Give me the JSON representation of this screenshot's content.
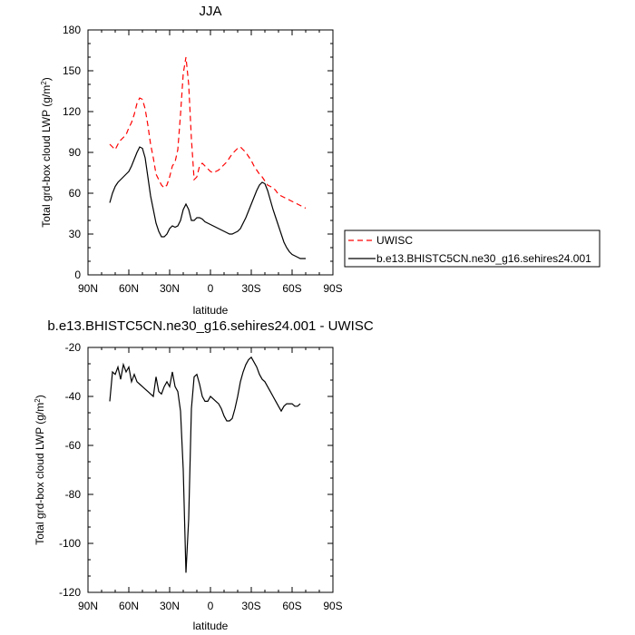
{
  "chart_data": [
    {
      "type": "line",
      "title": "JJA",
      "xlabel": "latitude",
      "ylabel": "Total grd-box cloud LWP (g/m",
      "ylabel_sup": "2",
      "ylabel_close": ")",
      "xlim": [
        90,
        -90
      ],
      "ylim": [
        0,
        180
      ],
      "x_ticks": [
        90,
        60,
        30,
        0,
        -30,
        -60,
        -90
      ],
      "x_tick_labels": [
        "90N",
        "60N",
        "30N",
        "0",
        "30S",
        "60S",
        "90S"
      ],
      "y_ticks": [
        0,
        30,
        60,
        90,
        120,
        150,
        180
      ],
      "y_tick_labels": [
        "0",
        "30",
        "60",
        "90",
        "120",
        "150",
        "180"
      ],
      "legend_position": "right, outside plot",
      "series": [
        {
          "name": "UWISC",
          "color": "#ff0000",
          "dash": "dashed",
          "x": [
            74,
            72,
            70,
            68,
            66,
            64,
            62,
            60,
            58,
            56,
            54,
            52,
            50,
            48,
            46,
            44,
            42,
            40,
            38,
            36,
            34,
            32,
            30,
            28,
            26,
            24,
            22,
            20,
            18,
            16,
            14,
            12,
            10,
            8,
            6,
            4,
            2,
            0,
            -2,
            -4,
            -6,
            -8,
            -10,
            -12,
            -14,
            -16,
            -18,
            -20,
            -22,
            -24,
            -26,
            -28,
            -30,
            -32,
            -34,
            -36,
            -38,
            -40,
            -42,
            -44,
            -46,
            -48,
            -50,
            -52,
            -54,
            -56,
            -58,
            -60,
            -62,
            -64,
            -66,
            -68,
            -70
          ],
          "values": [
            96,
            94,
            92,
            96,
            99,
            101,
            103,
            108,
            112,
            118,
            126,
            130,
            129,
            122,
            110,
            96,
            86,
            74,
            70,
            66,
            64,
            66,
            72,
            80,
            83,
            92,
            118,
            148,
            160,
            140,
            100,
            70,
            72,
            80,
            82,
            80,
            78,
            76,
            75,
            76,
            77,
            79,
            81,
            83,
            86,
            89,
            91,
            93,
            94,
            92,
            90,
            87,
            84,
            80,
            77,
            74,
            72,
            69,
            66,
            65,
            64,
            62,
            59,
            58,
            57,
            56,
            55,
            54,
            53,
            52,
            51,
            50,
            49
          ]
        },
        {
          "name": "b.e13.BHISTC5CN.ne30_g16.sehires24.001",
          "color": "#000000",
          "dash": "solid",
          "x": [
            74,
            72,
            70,
            68,
            66,
            64,
            62,
            60,
            58,
            56,
            54,
            52,
            50,
            48,
            46,
            44,
            42,
            40,
            38,
            36,
            34,
            32,
            30,
            28,
            26,
            24,
            22,
            20,
            18,
            16,
            14,
            12,
            10,
            8,
            6,
            4,
            2,
            0,
            -2,
            -4,
            -6,
            -8,
            -10,
            -12,
            -14,
            -16,
            -18,
            -20,
            -22,
            -24,
            -26,
            -28,
            -30,
            -32,
            -34,
            -36,
            -38,
            -40,
            -42,
            -44,
            -46,
            -48,
            -50,
            -52,
            -54,
            -56,
            -58,
            -60,
            -62,
            -64,
            -66,
            -68,
            -70
          ],
          "values": [
            53,
            60,
            65,
            68,
            70,
            72,
            74,
            76,
            80,
            85,
            90,
            94,
            93,
            86,
            72,
            58,
            48,
            38,
            32,
            28,
            28,
            30,
            34,
            36,
            35,
            36,
            40,
            48,
            52,
            48,
            40,
            40,
            42,
            42,
            41,
            39,
            38,
            37,
            36,
            35,
            34,
            33,
            32,
            31,
            30,
            30,
            31,
            32,
            34,
            38,
            42,
            47,
            52,
            57,
            62,
            66,
            68,
            67,
            62,
            55,
            48,
            42,
            36,
            30,
            24,
            20,
            17,
            15,
            14,
            13,
            12,
            12,
            12
          ]
        }
      ]
    },
    {
      "type": "line",
      "title": "b.e13.BHISTC5CN.ne30_g16.sehires24.001 - UWISC",
      "xlabel": "latitude",
      "ylabel": "Total grd-box cloud LWP (g/m",
      "ylabel_sup": "2",
      "ylabel_close": ")",
      "xlim": [
        90,
        -90
      ],
      "ylim": [
        -120,
        -20
      ],
      "x_ticks": [
        90,
        60,
        30,
        0,
        -30,
        -60,
        -90
      ],
      "x_tick_labels": [
        "90N",
        "60N",
        "30N",
        "0",
        "30S",
        "60S",
        "90S"
      ],
      "y_ticks": [
        -120,
        -100,
        -80,
        -60,
        -40,
        -20
      ],
      "y_tick_labels": [
        "-120",
        "-100",
        "-80",
        "-60",
        "-40",
        "-20"
      ],
      "series": [
        {
          "color": "#000000",
          "dash": "solid",
          "x": [
            74,
            72,
            70,
            68,
            66,
            64,
            62,
            60,
            58,
            56,
            54,
            52,
            50,
            48,
            46,
            44,
            42,
            40,
            38,
            36,
            34,
            32,
            30,
            28,
            26,
            24,
            22,
            20,
            18,
            16,
            14,
            12,
            10,
            8,
            6,
            4,
            2,
            0,
            -2,
            -4,
            -6,
            -8,
            -10,
            -12,
            -14,
            -16,
            -18,
            -20,
            -22,
            -24,
            -26,
            -28,
            -30,
            -32,
            -34,
            -36,
            -38,
            -40,
            -42,
            -44,
            -46,
            -48,
            -50,
            -52,
            -54,
            -56,
            -58,
            -60,
            -62,
            -64,
            -66
          ],
          "values": [
            -42,
            -30,
            -31,
            -28,
            -33,
            -27,
            -30,
            -28,
            -34,
            -31,
            -34,
            -35,
            -36,
            -37,
            -38,
            -39,
            -40,
            -32,
            -38,
            -39,
            -36,
            -34,
            -36,
            -30,
            -36,
            -38,
            -46,
            -70,
            -112,
            -90,
            -45,
            -32,
            -31,
            -35,
            -40,
            -42,
            -42,
            -40,
            -41,
            -42,
            -43,
            -45,
            -48,
            -50,
            -50,
            -49,
            -45,
            -40,
            -34,
            -30,
            -27,
            -25,
            -24,
            -26,
            -28,
            -31,
            -33,
            -34,
            -36,
            -38,
            -40,
            -42,
            -44,
            -46,
            -44,
            -43,
            -43,
            -43,
            -44,
            -44,
            -43
          ]
        }
      ]
    }
  ]
}
